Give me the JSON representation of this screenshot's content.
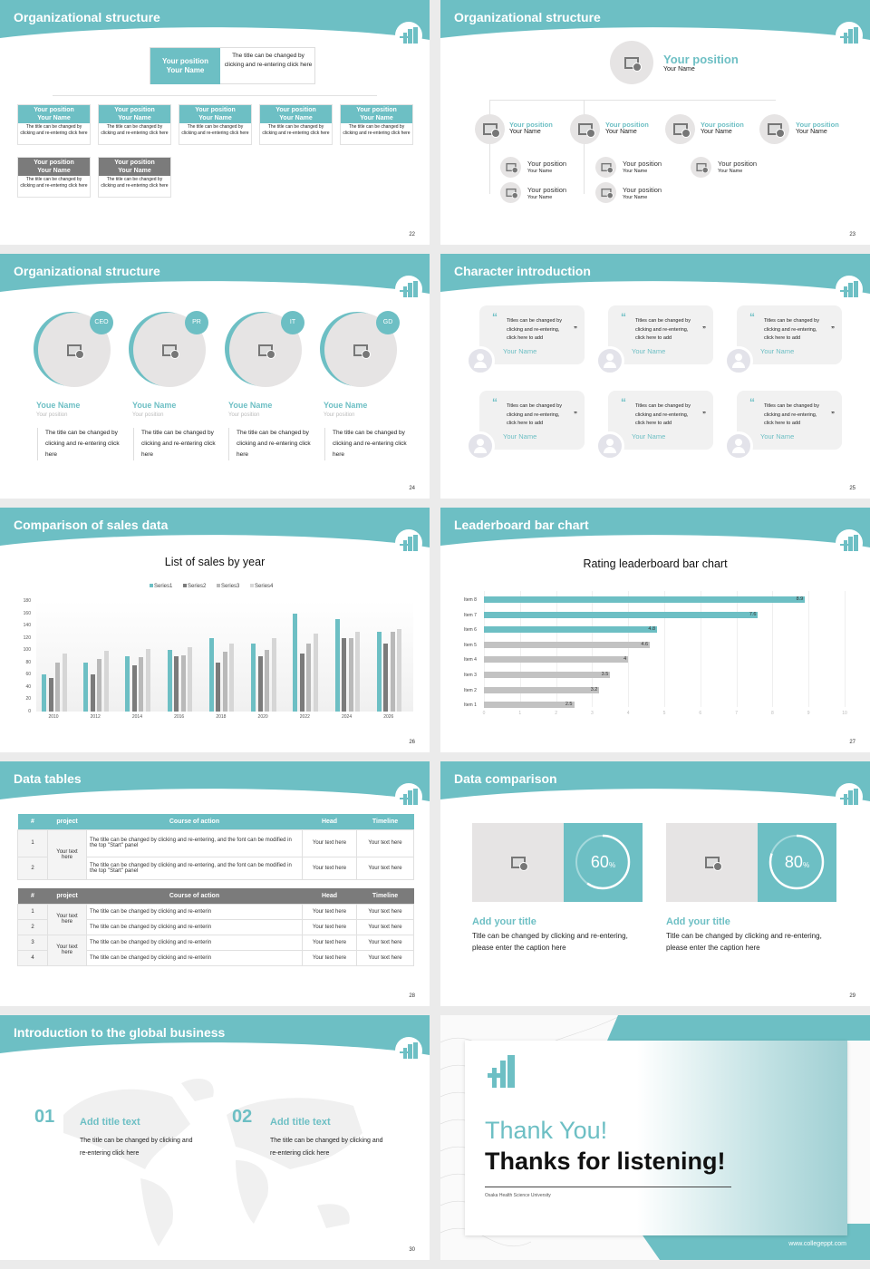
{
  "colors": {
    "accent": "#6dbfc4",
    "dark_gray": "#7b7b7b",
    "mid_gray": "#b9b9b9",
    "light_gray": "#d6d6d6",
    "placeholder": "#e6e4e4"
  },
  "slides": {
    "s22": {
      "title": "Organizational structure",
      "page": "22",
      "top": {
        "position": "Your position",
        "name": "Your Name",
        "desc": "The title can be changed by clicking and re-entering click here"
      },
      "row1": [
        {
          "position": "Your position",
          "name": "Your Name",
          "desc": "The title can be changed by clicking and re-entering click here"
        },
        {
          "position": "Your position",
          "name": "Your Name",
          "desc": "The title can be changed by clicking and re-entering click here"
        },
        {
          "position": "Your position",
          "name": "Your Name",
          "desc": "The title can be changed by clicking and re-entering click here"
        },
        {
          "position": "Your position",
          "name": "Your Name",
          "desc": "The title can be changed by clicking and re-entering click here"
        },
        {
          "position": "Your position",
          "name": "Your Name",
          "desc": "The title can be changed by clicking and re-entering click here"
        }
      ],
      "row2": [
        {
          "position": "Your position",
          "name": "Your Name",
          "desc": "The title can be changed by clicking and re-entering click here"
        },
        {
          "position": "Your position",
          "name": "Your Name",
          "desc": "The title can be changed by clicking and re-entering click here"
        }
      ]
    },
    "s23": {
      "title": "Organizational structure",
      "page": "23",
      "top": {
        "position": "Your position",
        "name": "Your Name"
      },
      "level2": [
        {
          "position": "Your position",
          "name": "Your Name"
        },
        {
          "position": "Your position",
          "name": "Your Name"
        },
        {
          "position": "Your position",
          "name": "Your Name"
        },
        {
          "position": "Your position",
          "name": "Your Name"
        }
      ],
      "level3": [
        {
          "position": "Your position",
          "name": "Your Name"
        },
        {
          "position": "Your position",
          "name": "Your Name"
        },
        {
          "position": "Your position",
          "name": "Your Name"
        },
        {
          "position": "Your position",
          "name": "Your Name"
        },
        {
          "position": "Your position",
          "name": "Your Name"
        }
      ]
    },
    "s24": {
      "title": "Organizational structure",
      "page": "24",
      "members": [
        {
          "tag": "CEO",
          "name": "Youe Name",
          "position": "Your position",
          "desc": "The title can be changed by clicking and re-entering click here"
        },
        {
          "tag": "PR",
          "name": "Youe Name",
          "position": "Your position",
          "desc": "The title can be changed by clicking and re-entering click here"
        },
        {
          "tag": "IT",
          "name": "Youe Name",
          "position": "Your position",
          "desc": "The title can be changed by clicking and re-entering click here"
        },
        {
          "tag": "GD",
          "name": "Youe Name",
          "position": "Your position",
          "desc": "The title can be changed by clicking and re-entering click here"
        }
      ]
    },
    "s25": {
      "title": "Character introduction",
      "page": "25",
      "open_quote": "“",
      "close_quote": "”",
      "cards": [
        {
          "text": "Titles can be changed by clicking and re-entering, click here to add",
          "name": "Your Name"
        },
        {
          "text": "Titles can be changed by clicking and re-entering, click here to add",
          "name": "Your Name"
        },
        {
          "text": "Titles can be changed by clicking and re-entering, click here to add",
          "name": "Your Name"
        },
        {
          "text": "Titles can be changed by clicking and re-entering, click here to add",
          "name": "Your Name"
        },
        {
          "text": "Titles can be changed by clicking and re-entering, click here to add",
          "name": "Your Name"
        },
        {
          "text": "Titles can be changed by clicking and re-entering, click here to add",
          "name": "Your Name"
        }
      ]
    },
    "s26": {
      "title": "Comparison of sales data",
      "page": "26"
    },
    "s27": {
      "title": "Leaderboard bar chart",
      "page": "27"
    },
    "s28": {
      "title": "Data tables",
      "page": "28",
      "headers": [
        "#",
        "project",
        "Course of action",
        "Head",
        "Timeline"
      ],
      "table1": {
        "project": "Your text here",
        "rows": [
          {
            "num": "1",
            "action": "The title can be changed by clicking and re-entering, and the font can be modified in the top \"Start\" panel",
            "head": "Your text here",
            "timeline": "Your text here"
          },
          {
            "num": "2",
            "action": "The title can be changed by clicking and re-entering, and the font can be modified in the top \"Start\" panel",
            "head": "Your text here",
            "timeline": "Your text here"
          }
        ]
      },
      "table2": {
        "projects": [
          "Your text here",
          "Your text here"
        ],
        "rows": [
          {
            "num": "1",
            "action": "The title can be changed by clicking and re-enterin",
            "head": "Your text here",
            "timeline": "Your text here"
          },
          {
            "num": "2",
            "action": "The title can be changed by clicking and re-enterin",
            "head": "Your text here",
            "timeline": "Your text here"
          },
          {
            "num": "3",
            "action": "The title can be changed by clicking and re-enterin",
            "head": "Your text here",
            "timeline": "Your text here"
          },
          {
            "num": "4",
            "action": "The title can be changed by clicking and re-enterin",
            "head": "Your text here",
            "timeline": "Your text here"
          }
        ]
      }
    },
    "s29": {
      "title": "Data comparison",
      "page": "29",
      "items": [
        {
          "value": "60",
          "unit": "%",
          "title": "Add your title",
          "desc": "Title can be changed by clicking and re-entering, please enter the caption here"
        },
        {
          "value": "80",
          "unit": "%",
          "title": "Add your title",
          "desc": "Title can be changed by clicking and re-entering, please enter the caption here"
        }
      ]
    },
    "s30": {
      "title": "Introduction to the global business",
      "page": "30",
      "items": [
        {
          "num": "01",
          "title": "Add title text",
          "desc": "The title can be changed by clicking and re-entering click here"
        },
        {
          "num": "02",
          "title": "Add title text",
          "desc": "The title can be changed by clicking and re-entering click here"
        }
      ]
    },
    "s31": {
      "thank_you": "Thank You!",
      "thanks_listening": "Thanks for listening!",
      "university": "Osaka Health Science University",
      "website": "www.collegeppt.com"
    }
  },
  "chart_data": [
    {
      "type": "bar",
      "title": "List of sales by year",
      "categories": [
        "2010",
        "2012",
        "2014",
        "2016",
        "2018",
        "2020",
        "2022",
        "2024",
        "2026"
      ],
      "series": [
        {
          "name": "Series1",
          "color": "#6dbfc4",
          "values": [
            60,
            80,
            90,
            100,
            120,
            110,
            160,
            150,
            130
          ]
        },
        {
          "name": "Series2",
          "color": "#7b7b7b",
          "values": [
            55,
            60,
            75,
            90,
            80,
            90,
            95,
            120,
            110
          ]
        },
        {
          "name": "Series3",
          "color": "#b9b9b9",
          "values": [
            80,
            86,
            88,
            92,
            98,
            100,
            110,
            120,
            130
          ]
        },
        {
          "name": "Series4",
          "color": "#d6d6d6",
          "values": [
            95,
            99,
            102,
            105,
            110,
            120,
            127,
            130,
            135
          ]
        }
      ],
      "yticks": [
        "0",
        "20",
        "40",
        "60",
        "80",
        "100",
        "120",
        "140",
        "160",
        "180"
      ],
      "ylim": [
        0,
        180
      ],
      "legend_position": "top",
      "grid": false
    },
    {
      "type": "bar",
      "orientation": "horizontal",
      "title": "Rating leaderboard bar chart",
      "categories": [
        "Item 8",
        "Item 7",
        "Item 6",
        "Item 5",
        "Item 4",
        "Item 3",
        "Item 2",
        "Item 1"
      ],
      "values": [
        8.9,
        7.6,
        4.8,
        4.6,
        4,
        3.5,
        3.2,
        2.5
      ],
      "labels": [
        "8.9",
        "7.6",
        "4.8",
        "4.6",
        "4",
        "3.5",
        "3.2",
        "2.5"
      ],
      "highlight_top": 3,
      "xticks": [
        "0",
        "1",
        "2",
        "3",
        "4",
        "5",
        "6",
        "7",
        "8",
        "9",
        "10"
      ],
      "xlim": [
        0,
        10
      ],
      "grid": true
    }
  ]
}
